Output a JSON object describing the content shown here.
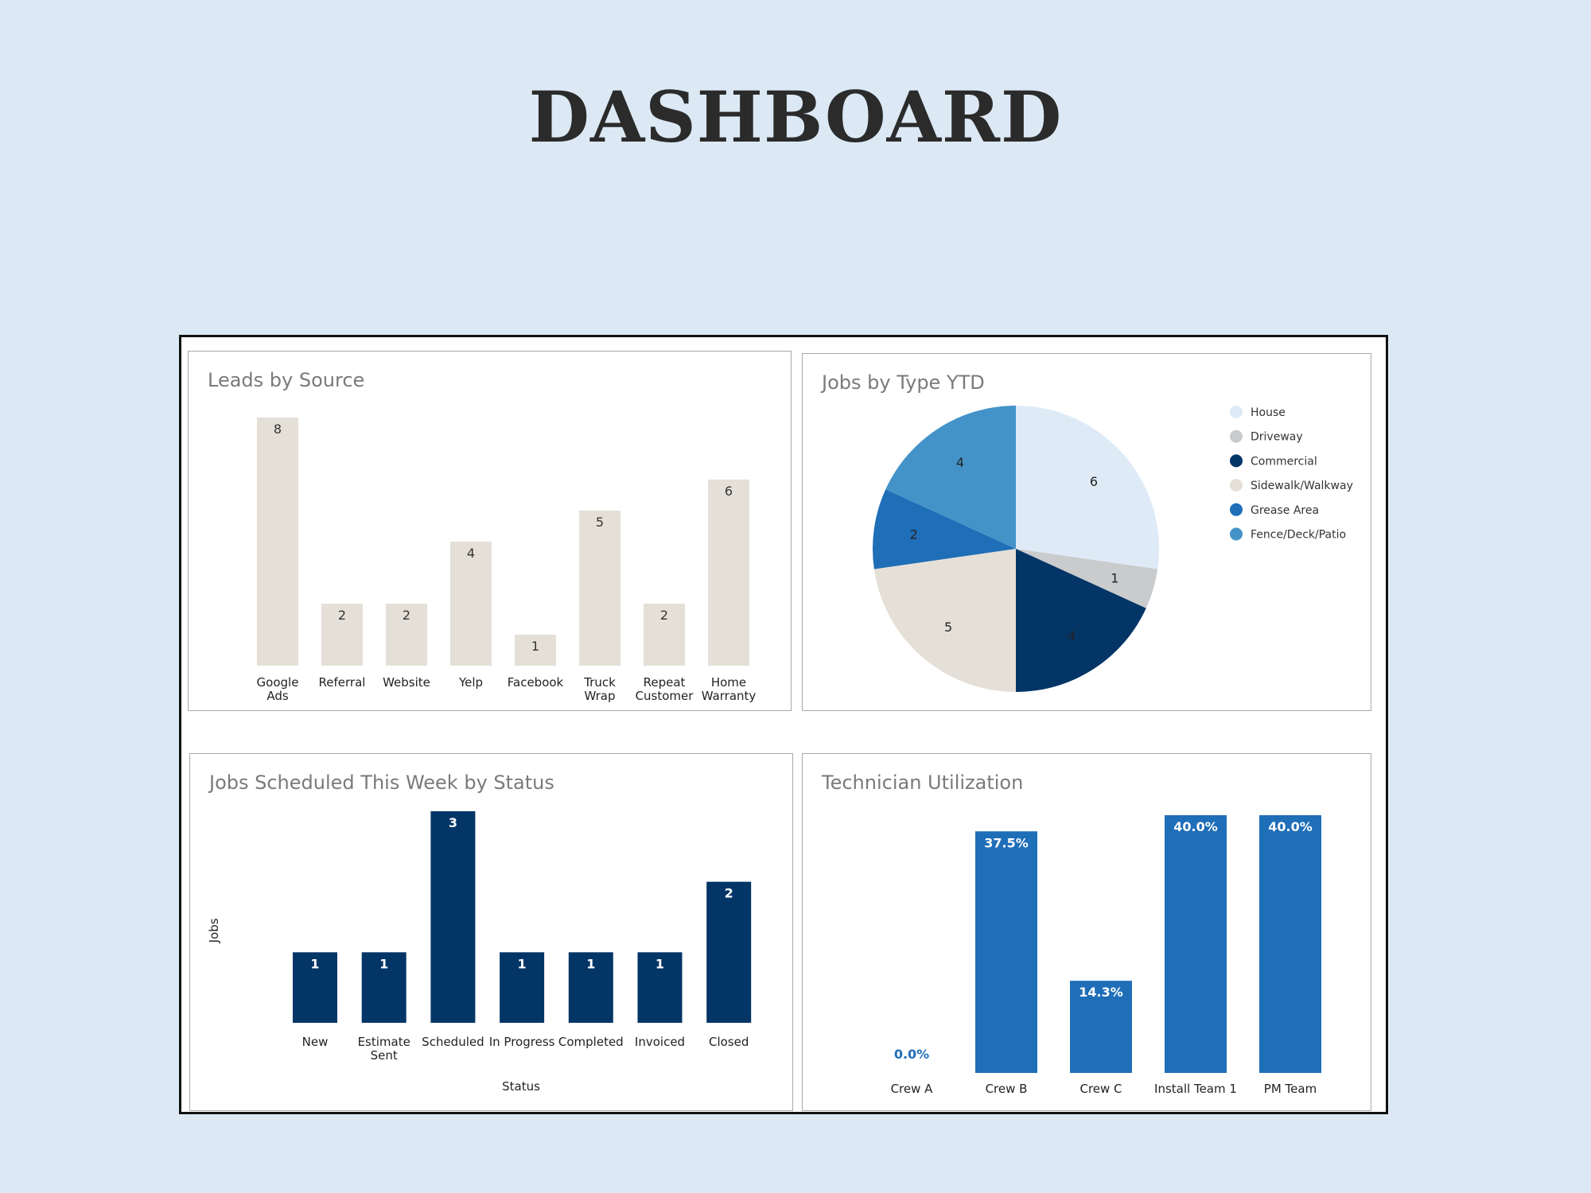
{
  "page": {
    "title": "DASHBOARD"
  },
  "colors": {
    "background": "#dce9f5",
    "leads_bar": "#e5e0d7",
    "status_bar": "#043567",
    "utilization_bar": "#1f6eb8"
  },
  "chart_data": [
    {
      "id": "leads",
      "type": "bar",
      "title": "Leads by Source",
      "categories": [
        [
          "Google",
          "Ads"
        ],
        [
          "Referral"
        ],
        [
          "Website"
        ],
        [
          "Yelp"
        ],
        [
          "Facebook"
        ],
        [
          "Truck",
          "Wrap"
        ],
        [
          "Repeat",
          "Customer"
        ],
        [
          "Home",
          "Warranty"
        ]
      ],
      "values": [
        8,
        2,
        2,
        4,
        1,
        5,
        2,
        6
      ],
      "ylim": [
        0,
        8
      ],
      "grid": false,
      "color": "#e5e0d7"
    },
    {
      "id": "jobs_type",
      "type": "pie",
      "title": "Jobs by Type YTD",
      "labels": [
        "House",
        "Driveway",
        "Commercial",
        "Sidewalk/Walkway",
        "Grease Area",
        "Fence/Deck/Patio"
      ],
      "values": [
        6,
        1,
        4,
        5,
        2,
        4
      ],
      "colors": [
        "#dfeaf7",
        "#c9cbcd",
        "#043567",
        "#e5e0d7",
        "#1f6eb8",
        "#4393c9"
      ],
      "legend": "right"
    },
    {
      "id": "status",
      "type": "bar",
      "title": "Jobs Scheduled This Week by Status",
      "xlabel": "Status",
      "ylabel": "Jobs",
      "categories": [
        [
          "New"
        ],
        [
          "Estimate",
          "Sent"
        ],
        [
          "Scheduled"
        ],
        [
          "In Progress"
        ],
        [
          "Completed"
        ],
        [
          "Invoiced"
        ],
        [
          "Closed"
        ]
      ],
      "values": [
        1,
        1,
        3,
        1,
        1,
        1,
        2
      ],
      "ylim": [
        0,
        3
      ],
      "grid": false,
      "color": "#043567"
    },
    {
      "id": "utilization",
      "type": "bar",
      "title": "Technician Utilization",
      "categories": [
        [
          "Crew A"
        ],
        [
          "Crew B"
        ],
        [
          "Crew C"
        ],
        [
          "Install Team 1"
        ],
        [
          "PM Team"
        ]
      ],
      "values": [
        0.0,
        37.5,
        14.3,
        40.0,
        40.0
      ],
      "value_labels": [
        "0.0%",
        "37.5%",
        "14.3%",
        "40.0%",
        "40.0%"
      ],
      "ylim": [
        0,
        40
      ],
      "grid": false,
      "color": "#1f6eb8"
    }
  ]
}
